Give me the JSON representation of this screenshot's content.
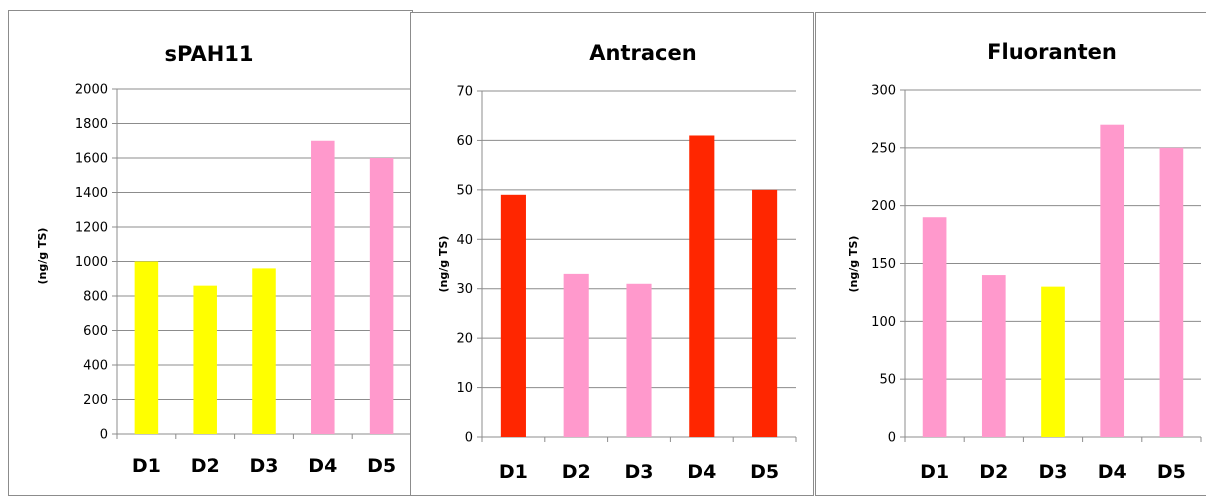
{
  "chart_data": [
    {
      "type": "bar",
      "title": "sPAH11",
      "ylabel": "(ng/g TS)",
      "xlabel": "",
      "categories": [
        "D1",
        "D2",
        "D3",
        "D4",
        "D5"
      ],
      "values": [
        1000,
        860,
        960,
        1700,
        1600
      ],
      "bar_colors": [
        "#ffff00",
        "#ffff00",
        "#ffff00",
        "#ff99cc",
        "#ff99cc"
      ],
      "ylim": [
        0,
        2000
      ],
      "yticks": [
        0,
        200,
        400,
        600,
        800,
        1000,
        1200,
        1400,
        1600,
        1800,
        2000
      ],
      "grid": true,
      "legend": "none"
    },
    {
      "type": "bar",
      "title": "Antracen",
      "ylabel": "(ng/g TS)",
      "xlabel": "",
      "categories": [
        "D1",
        "D2",
        "D3",
        "D4",
        "D5"
      ],
      "values": [
        49,
        33,
        31,
        61,
        50
      ],
      "bar_colors": [
        "#ff2600",
        "#ff99cc",
        "#ff99cc",
        "#ff2600",
        "#ff2600"
      ],
      "ylim": [
        0,
        70
      ],
      "yticks": [
        0,
        10,
        20,
        30,
        40,
        50,
        60,
        70
      ],
      "grid": true,
      "legend": "none"
    },
    {
      "type": "bar",
      "title": "Fluoranten",
      "ylabel": "(ng/g TS)",
      "xlabel": "",
      "categories": [
        "D1",
        "D2",
        "D3",
        "D4",
        "D5"
      ],
      "values": [
        190,
        140,
        130,
        270,
        250
      ],
      "bar_colors": [
        "#ff99cc",
        "#ff99cc",
        "#ffff00",
        "#ff99cc",
        "#ff99cc"
      ],
      "ylim": [
        0,
        300
      ],
      "yticks": [
        0,
        50,
        100,
        150,
        200,
        250,
        300
      ],
      "grid": true,
      "legend": "none"
    }
  ]
}
